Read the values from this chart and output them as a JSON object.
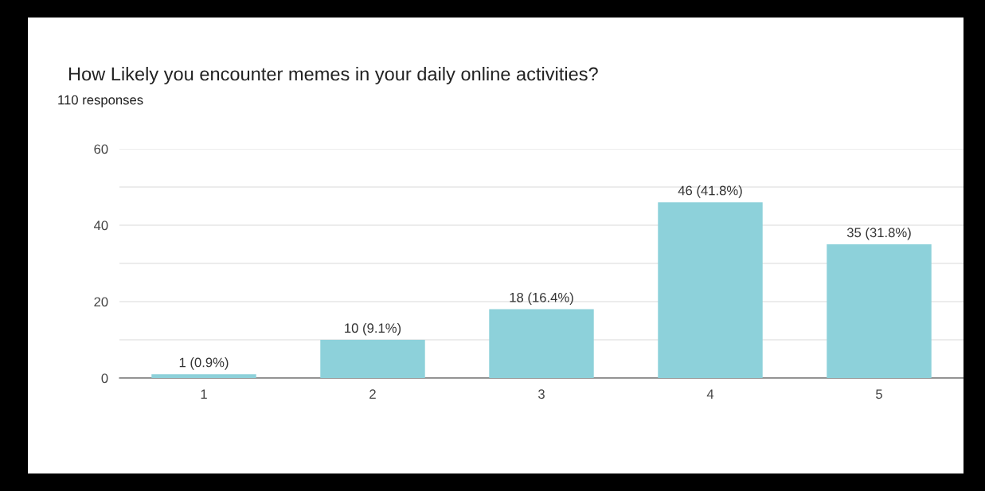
{
  "chart_data": {
    "type": "bar",
    "title": "How Likely you encounter memes in your daily online activities?",
    "subtitle": "110 responses",
    "categories": [
      "1",
      "2",
      "3",
      "4",
      "5"
    ],
    "values": [
      1,
      10,
      18,
      46,
      35
    ],
    "color": "#8dd1da",
    "value_labels": [
      "1 (0.9%)",
      "10 (9.1%)",
      "18 (16.4%)",
      "46 (41.8%)",
      "35 (31.8%)"
    ],
    "ylim": [
      0,
      60
    ],
    "yticks": [
      0,
      {
        "value": 10,
        "label": null
      },
      20,
      {
        "value": 30,
        "label": null
      },
      40,
      {
        "value": 50,
        "label": null
      },
      60
    ],
    "grid": "y",
    "legend": false
  }
}
